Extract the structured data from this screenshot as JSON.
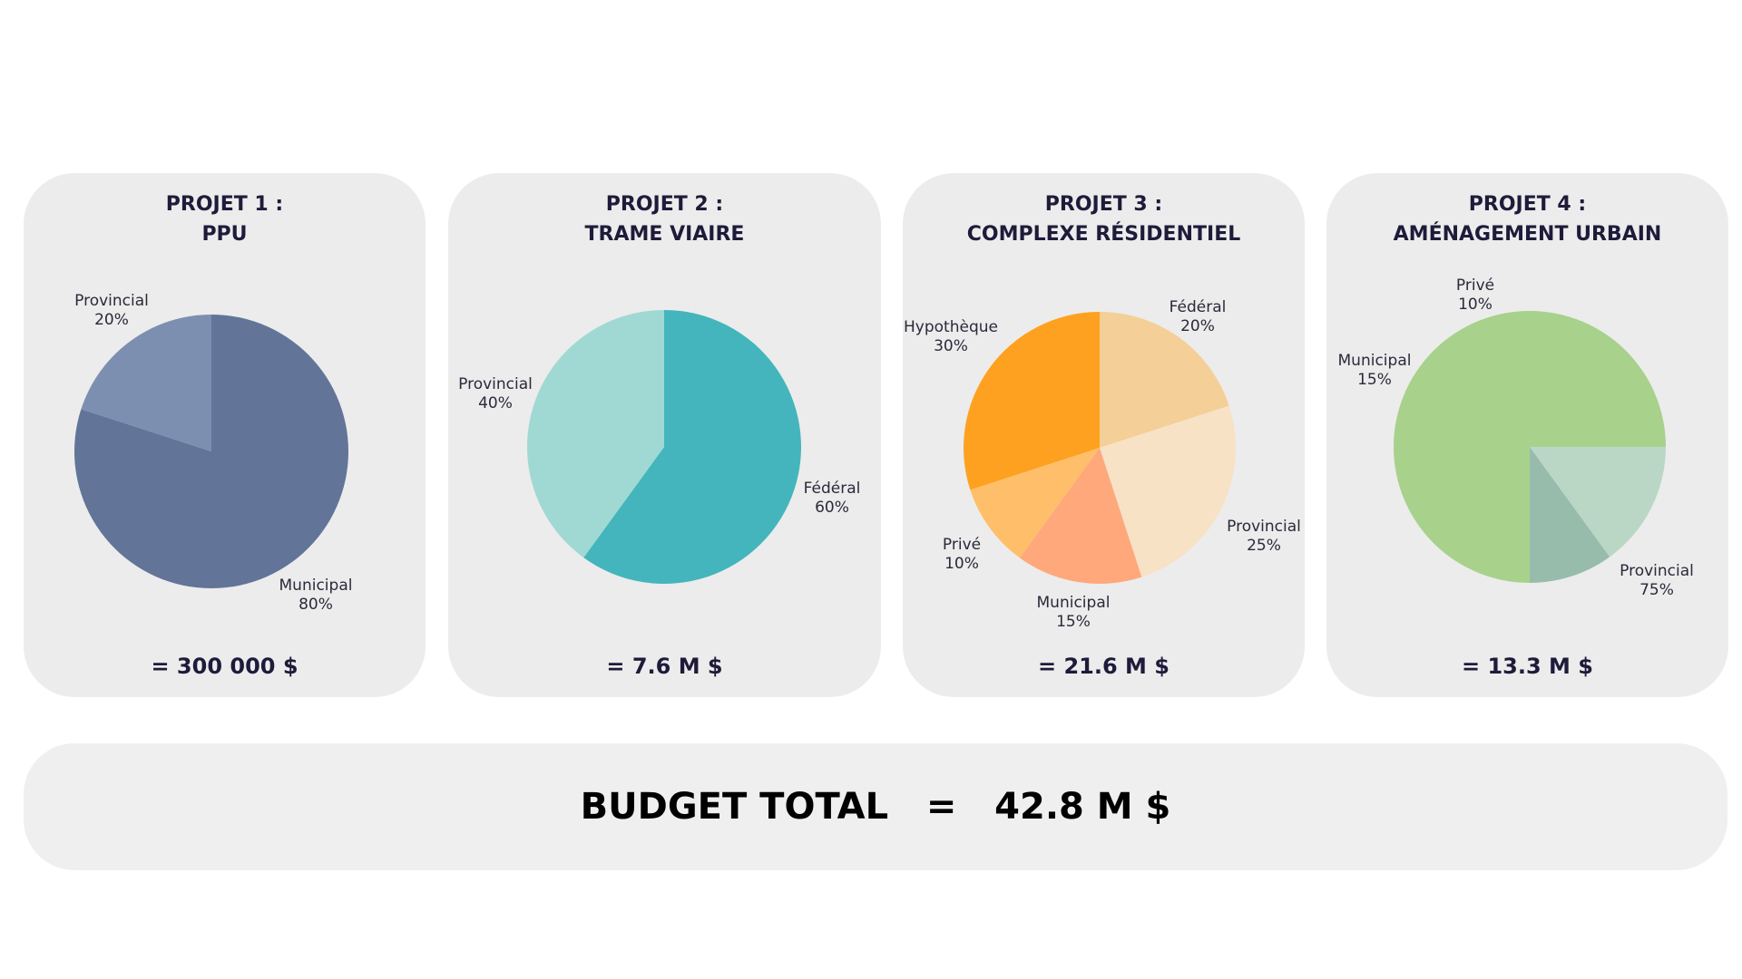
{
  "chart_data": [
    {
      "type": "pie",
      "title_line1": "PROJET 1 :",
      "title_line2": "PPU",
      "total": "= 300 000 $",
      "slices": [
        {
          "label": "Municipal",
          "pct_text": "80%",
          "value": 80,
          "color": "#627498"
        },
        {
          "label": "Provincial",
          "pct_text": "20%",
          "value": 20,
          "color": "#7d8fb1"
        }
      ]
    },
    {
      "type": "pie",
      "title_line1": "PROJET 2 :",
      "title_line2": "TRAME VIAIRE",
      "total": "= 7.6 M $",
      "slices": [
        {
          "label": "Fédéral",
          "pct_text": "60%",
          "value": 60,
          "color": "#44b5bc"
        },
        {
          "label": "Provincial",
          "pct_text": "40%",
          "value": 40,
          "color": "#a0d9d4"
        }
      ]
    },
    {
      "type": "pie",
      "title_line1": "PROJET 3 :",
      "title_line2": "COMPLEXE RÉSIDENTIEL",
      "total": "= 21.6 M $",
      "slices": [
        {
          "label": "Fédéral",
          "pct_text": "20%",
          "value": 20,
          "color": "#f5cf98"
        },
        {
          "label": "Provincial",
          "pct_text": "25%",
          "value": 25,
          "color": "#f7e2c6"
        },
        {
          "label": "Municipal",
          "pct_text": "15%",
          "value": 15,
          "color": "#ffa87c"
        },
        {
          "label": "Privé",
          "pct_text": "10%",
          "value": 10,
          "color": "#ffbf6a"
        },
        {
          "label": "Hypothèque",
          "pct_text": "30%",
          "value": 30,
          "color": "#fea120"
        }
      ]
    },
    {
      "type": "pie",
      "title_line1": "PROJET 4 :",
      "title_line2": "AMÉNAGEMENT URBAIN",
      "total": "= 13.3 M $",
      "slices": [
        {
          "label": "Provincial",
          "pct_text": "75%",
          "value": 75,
          "color": "#a8d18b"
        },
        {
          "label": "Municipal",
          "pct_text": "15%",
          "value": 15,
          "color": "#bad7c6"
        },
        {
          "label": "Privé",
          "pct_text": "10%",
          "value": 10,
          "color": "#98bcac"
        }
      ]
    }
  ],
  "budget": {
    "label": "BUDGET TOTAL",
    "equals": "=",
    "value": "42.8 M $"
  }
}
